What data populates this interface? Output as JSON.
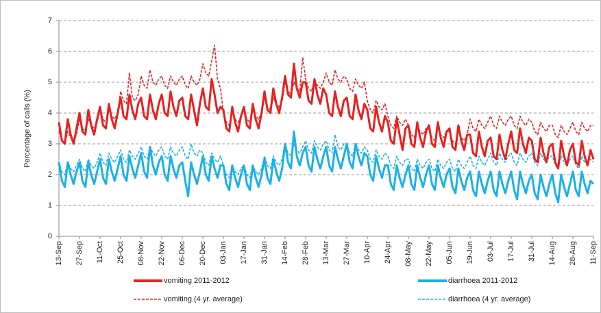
{
  "chart_data": {
    "type": "line",
    "ylabel": "Percentage of calls (%)",
    "ylim": [
      0,
      7
    ],
    "yticks": [
      0,
      1,
      2,
      3,
      4,
      5,
      6,
      7
    ],
    "grid": true,
    "legend": "bottom",
    "categories": [
      "13-Sep",
      null,
      null,
      null,
      null,
      null,
      null,
      "27-Sep",
      null,
      null,
      null,
      null,
      null,
      null,
      "11-Oct",
      null,
      null,
      null,
      null,
      null,
      null,
      "25-Oct",
      null,
      null,
      null,
      null,
      null,
      null,
      "08-Nov",
      null,
      null,
      null,
      null,
      null,
      null,
      "22-Nov",
      null,
      null,
      null,
      null,
      null,
      null,
      "06-Dec",
      null,
      null,
      null,
      null,
      null,
      null,
      "20-Dec",
      null,
      null,
      null,
      null,
      null,
      null,
      "03-Jan",
      null,
      null,
      null,
      null,
      null,
      null,
      "17-Jan",
      null,
      null,
      null,
      null,
      null,
      null,
      "31-Jan",
      null,
      null,
      null,
      null,
      null,
      null,
      "14-Feb",
      null,
      null,
      null,
      null,
      null,
      null,
      "28-Feb",
      null,
      null,
      null,
      null,
      null,
      null,
      "13-Mar",
      null,
      null,
      null,
      null,
      null,
      null,
      "27-Mar",
      null,
      null,
      null,
      null,
      null,
      null,
      "10-Apr",
      null,
      null,
      null,
      null,
      null,
      null,
      "24-Apr",
      null,
      null,
      null,
      null,
      null,
      null,
      "08-May",
      null,
      null,
      null,
      null,
      null,
      null,
      "22-May",
      null,
      null,
      null,
      null,
      null,
      null,
      "05-Jun",
      null,
      null,
      null,
      null,
      null,
      null,
      "19-Jun",
      null,
      null,
      null,
      null,
      null,
      null,
      "03-Jul",
      null,
      null,
      null,
      null,
      null,
      null,
      "17-Jul",
      null,
      null,
      null,
      null,
      null,
      null,
      "31-Jul",
      null,
      null,
      null,
      null,
      null,
      null,
      "14-Aug",
      null,
      null,
      null,
      null,
      null,
      null,
      "28-Aug",
      null,
      null,
      null,
      null,
      null,
      null,
      "11-Sep"
    ],
    "series": [
      {
        "name": "vomiting 2011-2012",
        "color": "#e8201e",
        "dashed": false,
        "values": [
          3.7,
          3.1,
          3.0,
          3.8,
          3.3,
          3.0,
          3.5,
          4.0,
          3.4,
          3.3,
          4.1,
          3.6,
          3.3,
          3.8,
          4.2,
          3.6,
          3.5,
          4.3,
          3.8,
          3.5,
          4.0,
          4.5,
          3.9,
          3.8,
          4.6,
          4.1,
          3.8,
          4.3,
          4.5,
          3.9,
          3.8,
          4.6,
          4.1,
          3.8,
          4.3,
          4.6,
          4.0,
          3.9,
          4.7,
          4.2,
          3.9,
          4.4,
          4.5,
          3.9,
          3.8,
          4.6,
          4.1,
          3.6,
          4.3,
          4.8,
          4.2,
          4.1,
          5.1,
          4.6,
          4.0,
          4.2,
          4.1,
          3.5,
          3.4,
          4.2,
          3.7,
          3.4,
          3.9,
          4.2,
          3.6,
          3.5,
          4.3,
          3.8,
          3.5,
          4.0,
          4.7,
          4.1,
          4.0,
          4.8,
          4.3,
          4.0,
          4.5,
          5.2,
          4.6,
          4.5,
          5.6,
          4.8,
          4.5,
          5.0,
          5.0,
          4.4,
          4.3,
          5.1,
          4.6,
          4.3,
          4.8,
          4.6,
          4.0,
          3.9,
          4.7,
          4.2,
          3.9,
          4.4,
          4.5,
          3.9,
          3.8,
          4.6,
          4.1,
          3.8,
          4.3,
          4.1,
          3.5,
          3.4,
          4.2,
          3.7,
          3.4,
          3.9,
          3.7,
          3.1,
          3.0,
          3.8,
          3.3,
          2.8,
          3.5,
          3.6,
          3.0,
          2.9,
          3.7,
          3.2,
          2.9,
          3.4,
          3.6,
          3.0,
          2.9,
          3.7,
          3.2,
          2.9,
          3.4,
          3.5,
          2.9,
          2.8,
          3.6,
          3.1,
          2.8,
          3.3,
          3.3,
          2.7,
          2.6,
          3.4,
          2.9,
          2.6,
          3.1,
          3.2,
          2.6,
          2.5,
          3.3,
          2.8,
          2.5,
          3.0,
          3.4,
          2.8,
          2.7,
          3.5,
          3.0,
          2.7,
          3.2,
          3.1,
          2.5,
          2.4,
          3.2,
          2.7,
          2.4,
          2.9,
          3.0,
          2.4,
          2.2,
          3.1,
          2.6,
          2.3,
          2.8,
          3.0,
          2.4,
          2.3,
          3.1,
          2.6,
          2.3,
          2.8,
          2.5
        ]
      },
      {
        "name": "diarrhoea 2011-2012",
        "color": "#1ab0e8",
        "dashed": false,
        "values": [
          2.4,
          1.8,
          1.6,
          2.4,
          2.0,
          1.7,
          2.1,
          2.4,
          1.8,
          1.6,
          2.4,
          2.0,
          1.7,
          2.1,
          2.5,
          1.9,
          1.7,
          2.5,
          2.1,
          1.8,
          2.2,
          2.6,
          2.0,
          1.8,
          2.6,
          2.2,
          1.9,
          2.3,
          2.7,
          2.1,
          1.9,
          2.9,
          2.3,
          2.0,
          2.4,
          2.6,
          2.0,
          1.8,
          2.6,
          2.2,
          1.9,
          2.3,
          2.4,
          1.8,
          1.3,
          2.4,
          2.0,
          1.7,
          2.1,
          2.6,
          2.0,
          1.8,
          2.6,
          2.2,
          1.9,
          2.3,
          2.3,
          1.7,
          1.5,
          2.3,
          1.9,
          1.6,
          2.0,
          2.3,
          1.7,
          1.5,
          2.3,
          1.9,
          1.6,
          2.0,
          2.5,
          1.9,
          1.7,
          2.5,
          2.1,
          1.8,
          2.2,
          3.0,
          2.4,
          2.2,
          3.4,
          2.6,
          2.3,
          2.7,
          2.9,
          2.3,
          2.1,
          2.9,
          2.5,
          2.2,
          2.6,
          2.9,
          2.3,
          2.1,
          2.9,
          2.5,
          2.2,
          2.6,
          3.0,
          2.4,
          2.2,
          3.0,
          2.6,
          2.3,
          2.7,
          2.6,
          2.0,
          1.8,
          2.6,
          2.2,
          1.9,
          2.3,
          2.3,
          1.7,
          1.5,
          2.3,
          1.9,
          1.6,
          2.0,
          2.3,
          1.7,
          1.5,
          2.3,
          1.9,
          1.6,
          2.0,
          2.3,
          1.7,
          1.5,
          2.3,
          1.9,
          1.6,
          2.0,
          2.2,
          1.6,
          1.4,
          2.2,
          1.8,
          1.5,
          1.9,
          2.1,
          1.5,
          1.3,
          2.1,
          1.7,
          1.4,
          1.8,
          2.1,
          1.5,
          1.3,
          2.1,
          1.7,
          1.4,
          1.8,
          2.1,
          1.5,
          1.2,
          2.1,
          1.7,
          1.4,
          1.8,
          2.0,
          1.4,
          1.2,
          2.0,
          1.6,
          1.3,
          1.7,
          2.0,
          1.4,
          1.1,
          2.0,
          1.6,
          1.3,
          1.7,
          2.1,
          1.5,
          1.3,
          2.1,
          1.7,
          1.4,
          1.8,
          1.7
        ]
      },
      {
        "name": "vomiting (4 yr. average)",
        "color": "#e8201e",
        "dashed": true,
        "values": [
          3.4,
          3.1,
          3.0,
          3.4,
          3.2,
          3.1,
          3.3,
          3.8,
          3.5,
          3.4,
          3.8,
          3.6,
          3.5,
          3.7,
          4.1,
          3.8,
          3.7,
          4.1,
          3.9,
          3.8,
          4.0,
          4.7,
          4.4,
          4.3,
          5.3,
          4.5,
          4.4,
          4.6,
          5.2,
          4.9,
          4.8,
          5.4,
          5.0,
          4.9,
          5.1,
          5.2,
          4.9,
          4.8,
          5.2,
          5.0,
          4.9,
          5.1,
          5.2,
          4.9,
          4.8,
          5.2,
          5.0,
          4.9,
          5.1,
          5.6,
          5.3,
          5.2,
          5.7,
          6.2,
          5.1,
          4.8,
          4.0,
          3.7,
          3.6,
          4.0,
          3.8,
          3.7,
          3.9,
          4.1,
          3.8,
          3.7,
          4.1,
          3.9,
          3.8,
          4.0,
          4.5,
          4.2,
          4.1,
          4.5,
          4.3,
          4.2,
          4.4,
          5.0,
          4.7,
          4.6,
          5.0,
          4.8,
          4.7,
          5.8,
          5.1,
          4.8,
          4.7,
          5.1,
          4.9,
          4.8,
          5.0,
          5.3,
          5.0,
          4.9,
          5.4,
          5.1,
          5.0,
          5.2,
          5.1,
          4.8,
          4.7,
          5.1,
          4.9,
          4.8,
          5.0,
          4.4,
          4.1,
          4.0,
          4.4,
          4.2,
          4.1,
          4.3,
          3.9,
          3.6,
          3.5,
          3.9,
          3.7,
          3.6,
          3.8,
          3.6,
          3.3,
          3.2,
          3.6,
          3.4,
          3.3,
          3.5,
          3.5,
          3.2,
          3.1,
          3.5,
          3.3,
          3.2,
          3.4,
          3.4,
          3.1,
          3.0,
          3.4,
          3.2,
          3.1,
          3.3,
          3.8,
          3.5,
          3.4,
          3.8,
          3.6,
          3.5,
          3.7,
          3.9,
          3.6,
          3.5,
          3.9,
          3.7,
          3.6,
          3.8,
          3.9,
          3.6,
          3.5,
          3.9,
          3.7,
          3.6,
          3.8,
          3.7,
          3.4,
          3.3,
          3.7,
          3.5,
          3.4,
          3.6,
          3.6,
          3.3,
          3.2,
          3.6,
          3.4,
          3.3,
          3.5,
          3.7,
          3.4,
          3.3,
          3.7,
          3.5,
          3.4,
          3.6,
          3.6
        ]
      },
      {
        "name": "diarrhoea (4 yr. average)",
        "color": "#1ab0e8",
        "dashed": true,
        "values": [
          2.4,
          2.1,
          2.0,
          2.4,
          2.2,
          2.1,
          2.3,
          2.5,
          2.2,
          2.1,
          2.5,
          2.3,
          2.2,
          2.4,
          2.7,
          2.4,
          2.3,
          2.7,
          2.5,
          2.4,
          2.6,
          2.8,
          2.5,
          2.4,
          2.8,
          2.6,
          2.5,
          2.7,
          2.9,
          2.6,
          2.5,
          2.9,
          2.7,
          2.6,
          2.8,
          2.9,
          2.6,
          2.5,
          2.9,
          2.7,
          2.6,
          2.8,
          2.9,
          2.6,
          2.5,
          3.0,
          2.7,
          2.6,
          2.8,
          2.7,
          2.4,
          2.3,
          2.7,
          2.5,
          2.4,
          2.6,
          2.3,
          2.0,
          1.9,
          2.3,
          2.1,
          2.0,
          2.2,
          2.3,
          2.0,
          1.9,
          2.3,
          2.1,
          2.0,
          2.2,
          2.6,
          2.3,
          2.2,
          2.6,
          2.4,
          2.3,
          2.5,
          3.0,
          2.7,
          2.6,
          3.0,
          2.8,
          2.7,
          2.9,
          3.1,
          2.8,
          2.7,
          3.1,
          2.9,
          2.8,
          3.0,
          3.1,
          2.8,
          2.7,
          3.3,
          2.9,
          2.8,
          3.0,
          3.0,
          2.7,
          2.6,
          3.0,
          2.8,
          2.7,
          2.9,
          2.8,
          2.5,
          2.4,
          2.8,
          2.6,
          2.5,
          2.7,
          2.6,
          2.3,
          2.2,
          2.6,
          2.4,
          2.3,
          2.5,
          2.5,
          2.2,
          2.1,
          2.5,
          2.3,
          2.2,
          2.4,
          2.5,
          2.2,
          2.1,
          2.5,
          2.3,
          2.2,
          2.4,
          2.5,
          2.2,
          2.1,
          2.5,
          2.3,
          2.2,
          2.4,
          2.6,
          2.3,
          2.2,
          2.6,
          2.4,
          2.3,
          2.5,
          2.7,
          2.4,
          2.3,
          2.7,
          2.5,
          2.4,
          2.6,
          2.7,
          2.4,
          2.3,
          2.7,
          2.5,
          2.4,
          2.6,
          2.7,
          2.4,
          2.3,
          2.7,
          2.5,
          2.4,
          2.6,
          2.6,
          2.3,
          2.2,
          2.6,
          2.4,
          2.3,
          2.5,
          2.6,
          2.3,
          2.2,
          2.6,
          2.4,
          2.3,
          2.5,
          2.4
        ]
      }
    ]
  }
}
